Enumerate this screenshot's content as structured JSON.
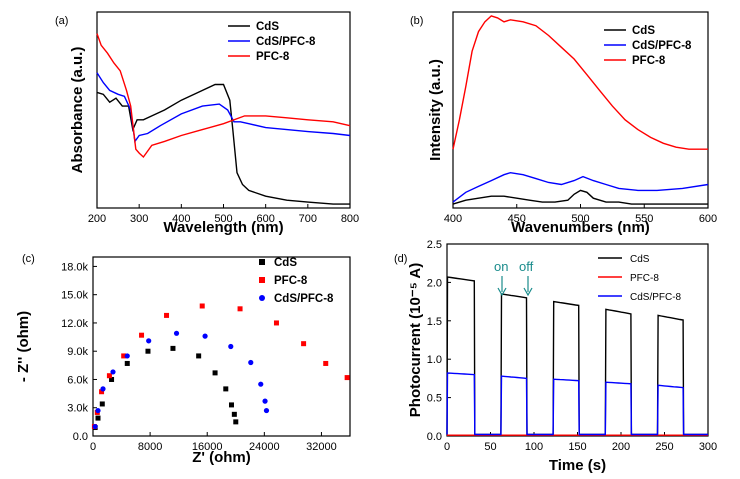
{
  "colors": {
    "CdS": "#000000",
    "PFC-8": "#ff0000",
    "CdS/PFC-8": "#0000ff",
    "annotation": "#1a8c8c"
  },
  "chart_data": [
    {
      "panel": "(a)",
      "type": "line",
      "xlabel": "Wavelength (nm)",
      "ylabel": "Absorbance (a.u.)",
      "xlim": [
        200,
        800
      ],
      "ylim": [
        0,
        1
      ],
      "xticks": [
        "200",
        "300",
        "400",
        "500",
        "600",
        "700",
        "800"
      ],
      "legend": [
        "CdS",
        "CdS/PFC-8",
        "PFC-8"
      ],
      "series": [
        {
          "name": "CdS",
          "x": [
            200,
            215,
            230,
            245,
            260,
            275,
            285,
            295,
            310,
            330,
            360,
            400,
            440,
            480,
            500,
            515,
            522,
            532,
            545,
            560,
            600,
            650,
            700,
            760,
            800
          ],
          "y": [
            0.59,
            0.58,
            0.54,
            0.56,
            0.52,
            0.52,
            0.4,
            0.45,
            0.45,
            0.47,
            0.5,
            0.55,
            0.59,
            0.63,
            0.63,
            0.55,
            0.4,
            0.18,
            0.12,
            0.09,
            0.06,
            0.04,
            0.03,
            0.02,
            0.02
          ]
        },
        {
          "name": "CdS/PFC-8",
          "x": [
            200,
            215,
            230,
            250,
            265,
            280,
            290,
            300,
            320,
            350,
            400,
            450,
            490,
            510,
            525,
            540,
            560,
            600,
            650,
            700,
            760,
            800
          ],
          "y": [
            0.69,
            0.64,
            0.6,
            0.58,
            0.57,
            0.5,
            0.34,
            0.37,
            0.38,
            0.42,
            0.48,
            0.52,
            0.53,
            0.5,
            0.44,
            0.44,
            0.43,
            0.41,
            0.4,
            0.39,
            0.38,
            0.37
          ]
        },
        {
          "name": "PFC-8",
          "x": [
            200,
            210,
            225,
            240,
            255,
            270,
            280,
            292,
            300,
            310,
            330,
            360,
            400,
            450,
            500,
            550,
            600,
            650,
            700,
            760,
            800
          ],
          "y": [
            0.89,
            0.83,
            0.79,
            0.74,
            0.7,
            0.6,
            0.52,
            0.3,
            0.28,
            0.26,
            0.32,
            0.34,
            0.37,
            0.4,
            0.43,
            0.47,
            0.47,
            0.46,
            0.45,
            0.44,
            0.42
          ]
        }
      ]
    },
    {
      "panel": "(b)",
      "type": "line",
      "xlabel": "Wavenumbers (nm)",
      "ylabel": "Intensity (a.u.)",
      "xlim": [
        400,
        600
      ],
      "ylim": [
        0,
        1
      ],
      "xticks": [
        "400",
        "450",
        "500",
        "550",
        "600"
      ],
      "legend": [
        "CdS",
        "CdS/PFC-8",
        "PFC-8"
      ],
      "series": [
        {
          "name": "CdS",
          "x": [
            400,
            410,
            420,
            430,
            440,
            450,
            460,
            470,
            480,
            490,
            495,
            500,
            505,
            510,
            520,
            530,
            540,
            560,
            580,
            600
          ],
          "y": [
            0.02,
            0.04,
            0.05,
            0.06,
            0.06,
            0.05,
            0.04,
            0.03,
            0.03,
            0.04,
            0.07,
            0.09,
            0.08,
            0.05,
            0.03,
            0.03,
            0.02,
            0.02,
            0.02,
            0.02
          ]
        },
        {
          "name": "CdS/PFC-8",
          "x": [
            400,
            410,
            420,
            430,
            440,
            445,
            455,
            465,
            475,
            485,
            495,
            502,
            510,
            520,
            530,
            545,
            560,
            580,
            600
          ],
          "y": [
            0.03,
            0.08,
            0.11,
            0.14,
            0.17,
            0.18,
            0.17,
            0.15,
            0.13,
            0.12,
            0.14,
            0.16,
            0.14,
            0.12,
            0.1,
            0.09,
            0.09,
            0.1,
            0.12
          ]
        },
        {
          "name": "PFC-8",
          "x": [
            400,
            405,
            410,
            415,
            420,
            425,
            430,
            435,
            440,
            445,
            455,
            465,
            475,
            485,
            495,
            505,
            515,
            525,
            535,
            545,
            555,
            565,
            575,
            585,
            600
          ],
          "y": [
            0.3,
            0.45,
            0.62,
            0.8,
            0.9,
            0.95,
            0.98,
            0.97,
            0.95,
            0.96,
            0.95,
            0.93,
            0.88,
            0.82,
            0.76,
            0.68,
            0.6,
            0.52,
            0.45,
            0.4,
            0.36,
            0.33,
            0.31,
            0.3,
            0.3
          ]
        }
      ]
    },
    {
      "panel": "(c)",
      "type": "scatter",
      "xlabel": "Z' (ohm)",
      "ylabel": "- Z'' (ohm)",
      "xlim": [
        0,
        36000
      ],
      "ylim": [
        0,
        19000
      ],
      "xticks": [
        "0",
        "8000",
        "16000",
        "24000",
        "32000"
      ],
      "yticks": [
        "0.0",
        "3.0k",
        "6.0k",
        "9.0k",
        "12.0k",
        "15.0k",
        "18.0k"
      ],
      "legend": [
        "CdS",
        "PFC-8",
        "CdS/PFC-8"
      ],
      "series": [
        {
          "name": "CdS",
          "points": [
            [
              300,
              900
            ],
            [
              700,
              1900
            ],
            [
              1300,
              3400
            ],
            [
              2600,
              6000
            ],
            [
              4800,
              7700
            ],
            [
              7700,
              9000
            ],
            [
              11200,
              9300
            ],
            [
              14800,
              8500
            ],
            [
              17100,
              6700
            ],
            [
              18600,
              5000
            ],
            [
              19400,
              3300
            ],
            [
              19800,
              2300
            ],
            [
              20000,
              1500
            ]
          ]
        },
        {
          "name": "PFC-8",
          "points": [
            [
              200,
              1000
            ],
            [
              600,
              2500
            ],
            [
              1200,
              4700
            ],
            [
              2300,
              6400
            ],
            [
              4300,
              8500
            ],
            [
              6800,
              10700
            ],
            [
              10300,
              12800
            ],
            [
              15300,
              13800
            ],
            [
              20600,
              13500
            ],
            [
              25700,
              12000
            ],
            [
              29500,
              9800
            ],
            [
              32600,
              7700
            ],
            [
              35600,
              6200
            ]
          ]
        },
        {
          "name": "CdS/PFC-8",
          "points": [
            [
              300,
              1000
            ],
            [
              700,
              2700
            ],
            [
              1400,
              5000
            ],
            [
              2800,
              6800
            ],
            [
              4800,
              8500
            ],
            [
              7800,
              10100
            ],
            [
              11700,
              10900
            ],
            [
              15700,
              10600
            ],
            [
              19300,
              9500
            ],
            [
              22100,
              7800
            ],
            [
              23500,
              5500
            ],
            [
              24100,
              3700
            ],
            [
              24300,
              2700
            ]
          ]
        }
      ]
    },
    {
      "panel": "(d)",
      "type": "line",
      "xlabel": "Time (s)",
      "ylabel": "Photocurrent (10⁻⁵ A)",
      "xlim": [
        0,
        300
      ],
      "ylim": [
        0,
        2.5
      ],
      "xticks": [
        "0",
        "50",
        "100",
        "150",
        "200",
        "250",
        "300"
      ],
      "yticks": [
        "0.0",
        "0.5",
        "1.0",
        "1.5",
        "2.0",
        "2.5"
      ],
      "legend": [
        "CdS",
        "PFC-8",
        "CdS/PFC-8"
      ],
      "annotations": [
        "on",
        "off"
      ],
      "light_on_intervals": [
        [
          0,
          32
        ],
        [
          62,
          92
        ],
        [
          122,
          152
        ],
        [
          182,
          212
        ],
        [
          242,
          272
        ]
      ],
      "series": [
        {
          "name": "CdS",
          "on_levels": [
            [
              2.07,
              2.02
            ],
            [
              1.85,
              1.8
            ],
            [
              1.75,
              1.7
            ],
            [
              1.65,
              1.59
            ],
            [
              1.57,
              1.51
            ]
          ],
          "off_level": 0.02
        },
        {
          "name": "PFC-8",
          "on_levels": [
            [
              0.01,
              0.01
            ],
            [
              0.01,
              0.01
            ],
            [
              0.01,
              0.01
            ],
            [
              0.01,
              0.01
            ],
            [
              0.01,
              0.01
            ]
          ],
          "off_level": 0.01
        },
        {
          "name": "CdS/PFC-8",
          "on_levels": [
            [
              0.82,
              0.8
            ],
            [
              0.78,
              0.75
            ],
            [
              0.74,
              0.72
            ],
            [
              0.7,
              0.68
            ],
            [
              0.66,
              0.63
            ]
          ],
          "off_level": 0.02
        }
      ]
    }
  ]
}
